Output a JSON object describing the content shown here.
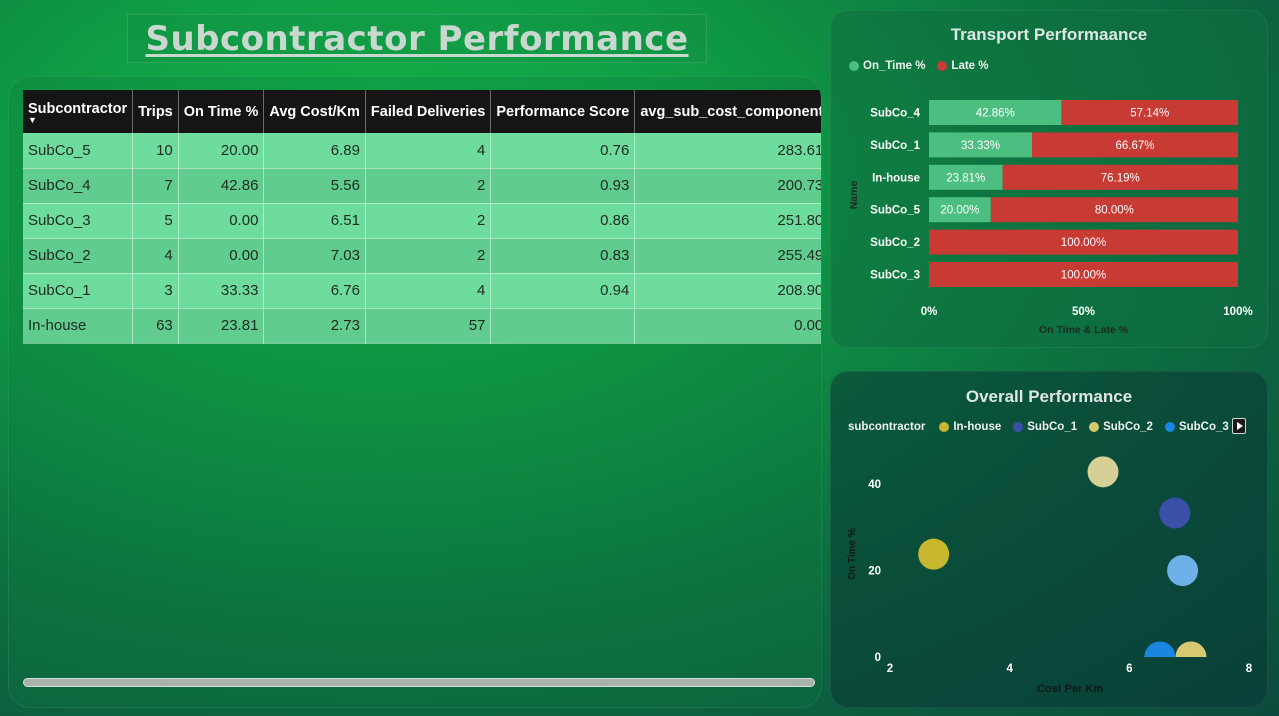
{
  "page": {
    "title": "Subcontractor Performance "
  },
  "table": {
    "columns": [
      "Subcontractor",
      "Trips",
      "On Time %",
      "Avg Cost/Km",
      "Failed Deliveries",
      "Performance Score",
      "avg_sub_cost_component"
    ],
    "rows": [
      [
        "SubCo_5",
        "10",
        "20.00",
        "6.89",
        "4",
        "0.76",
        "283.61"
      ],
      [
        "SubCo_4",
        "7",
        "42.86",
        "5.56",
        "2",
        "0.93",
        "200.73"
      ],
      [
        "SubCo_3",
        "5",
        "0.00",
        "6.51",
        "2",
        "0.86",
        "251.80"
      ],
      [
        "SubCo_2",
        "4",
        "0.00",
        "7.03",
        "2",
        "0.83",
        "255.49"
      ],
      [
        "SubCo_1",
        "3",
        "33.33",
        "6.76",
        "4",
        "0.94",
        "208.90"
      ],
      [
        "In-house",
        "63",
        "23.81",
        "2.73",
        "57",
        "",
        "0.00"
      ]
    ]
  },
  "chart_data": [
    {
      "type": "bar",
      "orientation": "horizontal",
      "stacked": "100%",
      "title": "Transport Performaance",
      "xlabel": "On Time & Late %",
      "ylabel": "Name",
      "xlim": [
        0,
        100
      ],
      "x_ticks": [
        "0%",
        "50%",
        "100%"
      ],
      "legend_position": "top-left",
      "categories": [
        "SubCo_4",
        "SubCo_1",
        "In-house",
        "SubCo_5",
        "SubCo_2",
        "SubCo_3"
      ],
      "series": [
        {
          "name": "On_Time %",
          "color": "#4cbf80",
          "values": [
            42.86,
            33.33,
            23.81,
            20.0,
            0,
            0
          ],
          "labels": [
            "42.86%",
            "33.33%",
            "23.81%",
            "20.00%",
            "",
            ""
          ]
        },
        {
          "name": "Late %",
          "color": "#c83a34",
          "values": [
            57.14,
            66.67,
            76.19,
            80.0,
            100,
            100
          ],
          "labels": [
            "57.14%",
            "66.67%",
            "76.19%",
            "80.00%",
            "100.00%",
            "100.00%"
          ]
        }
      ]
    },
    {
      "type": "scatter",
      "title": "Overall Performance",
      "xlabel": "Cost Per Km",
      "ylabel": "On Time %",
      "xlim": [
        2,
        8
      ],
      "ylim": [
        0,
        50
      ],
      "x_ticks": [
        2,
        4,
        6,
        8
      ],
      "y_ticks": [
        0,
        20,
        40
      ],
      "legend_title": "subcontractor",
      "legend_position": "top-left",
      "series": [
        {
          "name": "In-house",
          "color": "#c8b62e",
          "x": 2.73,
          "y": 23.81
        },
        {
          "name": "SubCo_1",
          "color": "#3a4fa8",
          "x": 6.76,
          "y": 33.33
        },
        {
          "name": "SubCo_2",
          "color": "#d8c870",
          "x": 7.03,
          "y": 0.0
        },
        {
          "name": "SubCo_3",
          "color": "#1a86e0",
          "x": 6.51,
          "y": 0.0
        },
        {
          "name": "",
          "color": "#d6d096",
          "x": 5.56,
          "y": 42.86
        },
        {
          "name": "",
          "color": "#6eb0e8",
          "x": 6.89,
          "y": 20.0
        }
      ]
    }
  ]
}
